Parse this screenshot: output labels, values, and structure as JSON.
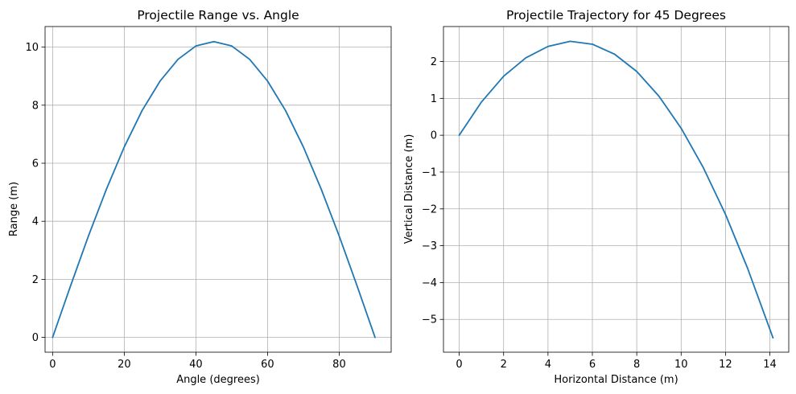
{
  "chart_data": [
    {
      "type": "line",
      "title": "Projectile Range vs. Angle",
      "xlabel": "Angle (degrees)",
      "ylabel": "Range (m)",
      "xlim": [
        -2.1,
        94.5
      ],
      "ylim": [
        -0.51,
        10.71
      ],
      "xticks": [
        0,
        20,
        40,
        60,
        80
      ],
      "xtick_labels": [
        "0",
        "20",
        "40",
        "60",
        "80"
      ],
      "yticks": [
        0,
        2,
        4,
        6,
        8,
        10
      ],
      "ytick_labels": [
        "0",
        "2",
        "4",
        "6",
        "8",
        "10"
      ],
      "grid": true,
      "line_color": "#1f77b4",
      "x": [
        0,
        5,
        10,
        15,
        20,
        25,
        30,
        35,
        40,
        45,
        50,
        55,
        60,
        65,
        70,
        75,
        80,
        85,
        90
      ],
      "y": [
        0,
        1.77,
        3.49,
        5.1,
        6.56,
        7.82,
        8.83,
        9.58,
        10.04,
        10.19,
        10.04,
        9.58,
        8.83,
        7.82,
        6.56,
        5.1,
        3.49,
        1.77,
        0
      ]
    },
    {
      "type": "line",
      "title": "Projectile Trajectory for 45 Degrees",
      "xlabel": "Horizontal Distance (m)",
      "ylabel": "Vertical Distance (m)",
      "xlim": [
        -0.71,
        14.85
      ],
      "ylim": [
        -5.89,
        2.95
      ],
      "xticks": [
        0,
        2,
        4,
        6,
        8,
        10,
        12,
        14
      ],
      "xtick_labels": [
        "0",
        "2",
        "4",
        "6",
        "8",
        "10",
        "12",
        "14"
      ],
      "yticks": [
        -5,
        -4,
        -3,
        -2,
        -1,
        0,
        1,
        2
      ],
      "ytick_labels": [
        "−5",
        "−4",
        "−3",
        "−2",
        "−1",
        "0",
        "1",
        "2"
      ],
      "grid": true,
      "line_color": "#1f77b4",
      "x": [
        0,
        1,
        2,
        3,
        4,
        5,
        6,
        7,
        8,
        9,
        10,
        11,
        12,
        13,
        14.14
      ],
      "y": [
        0,
        0.9,
        1.6,
        2.1,
        2.41,
        2.55,
        2.47,
        2.2,
        1.73,
        1.06,
        0.19,
        -0.88,
        -2.15,
        -3.62,
        -5.5
      ]
    }
  ]
}
